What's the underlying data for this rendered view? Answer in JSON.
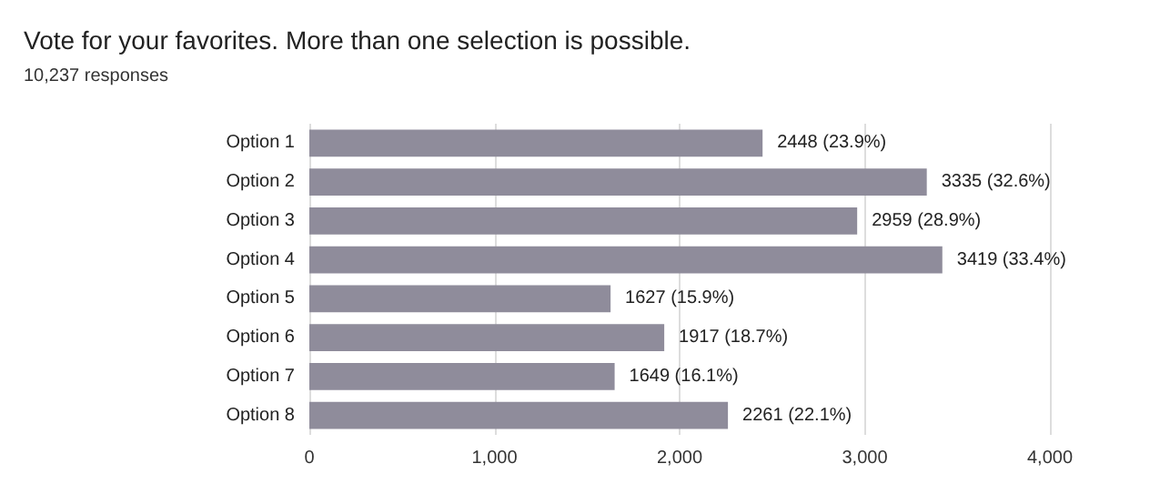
{
  "chart_data": {
    "type": "bar",
    "orientation": "horizontal",
    "title": "Vote for your favorites. More than one selection is possible.",
    "subtitle": "10,237 responses",
    "categories": [
      "Option 1",
      "Option 2",
      "Option 3",
      "Option 4",
      "Option 5",
      "Option 6",
      "Option 7",
      "Option 8"
    ],
    "values": [
      2448,
      3335,
      2959,
      3419,
      1627,
      1917,
      1649,
      2261
    ],
    "value_labels": [
      "2448 (23.9%)",
      "3335 (32.6%)",
      "2959 (28.9%)",
      "3419 (33.4%)",
      "1627 (15.9%)",
      "1917 (18.7%)",
      "1649 (16.1%)",
      "2261 (22.1%)"
    ],
    "color": "#8f8c9b",
    "xlim": [
      0,
      4000
    ],
    "xticks": [
      0,
      {
        "value": 1000,
        "label": "1,000"
      },
      {
        "value": 2000,
        "label": "2,000"
      },
      {
        "value": 3000,
        "label": "3,000"
      },
      {
        "value": 4000,
        "label": "4,000"
      }
    ],
    "grid": "x"
  }
}
